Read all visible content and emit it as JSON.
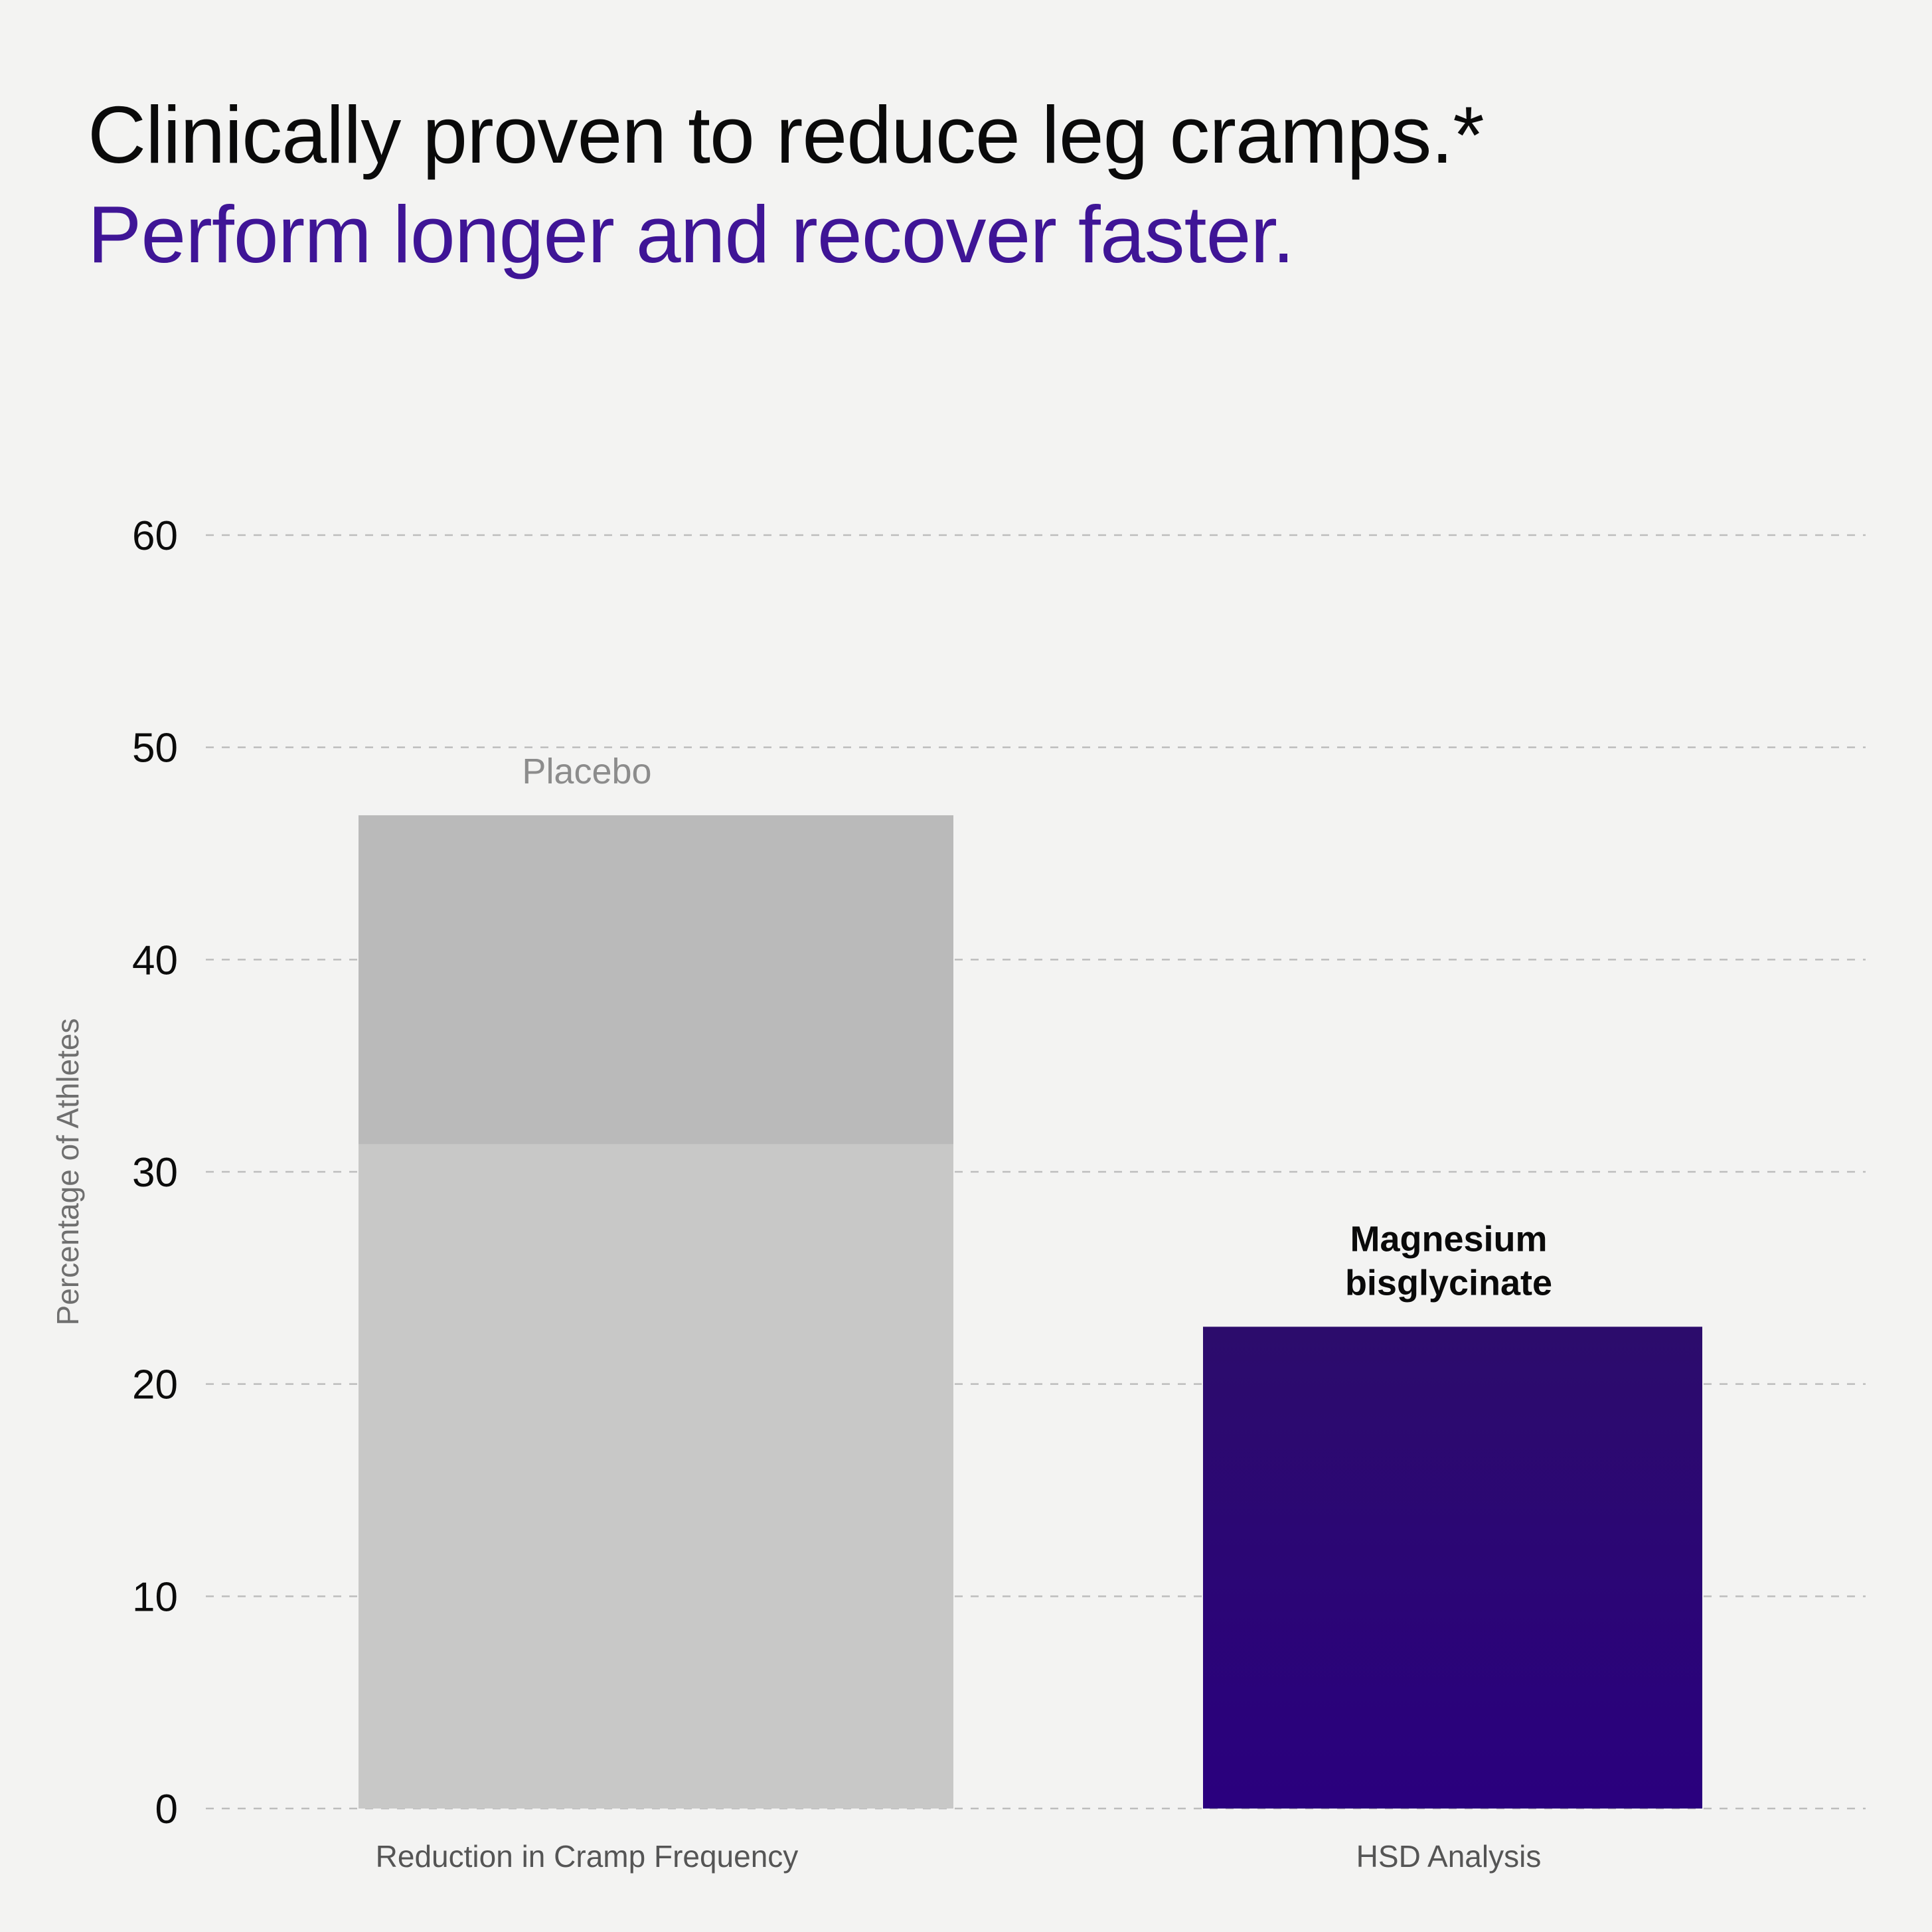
{
  "headline": {
    "line1": "Clinically proven to reduce leg cramps.*",
    "line2": "Perform longer and recover faster."
  },
  "colors": {
    "background": "#f3f3f2",
    "headline_line1": "#0a0a0a",
    "headline_line2": "#3f1596",
    "placebo_upper": "#bababa",
    "placebo_lower": "#c8c8c7",
    "magnesium_top": "#2c0c6c",
    "magnesium_bottom": "#2a007e",
    "placebo_label": "#8c8c8c",
    "magnesium_label": "#0a0a0a",
    "gridline": "#bdbdbd"
  },
  "chart_data": {
    "type": "bar",
    "ylabel": "Percentage of Athletes",
    "ylim": [
      0,
      60
    ],
    "yticks": [
      0,
      10,
      20,
      30,
      40,
      50,
      60
    ],
    "grid": true,
    "categories": [
      "Reduction in Cramp Frequency",
      "HSD Analysis"
    ],
    "bars": [
      {
        "category": "Reduction in Cramp Frequency",
        "label": [
          "Placebo"
        ],
        "value": 46.8,
        "inner_band_top": 31.3
      },
      {
        "category": "HSD Analysis",
        "label": [
          "Magnesium",
          "bisglycinate"
        ],
        "value": 22.7
      }
    ]
  }
}
